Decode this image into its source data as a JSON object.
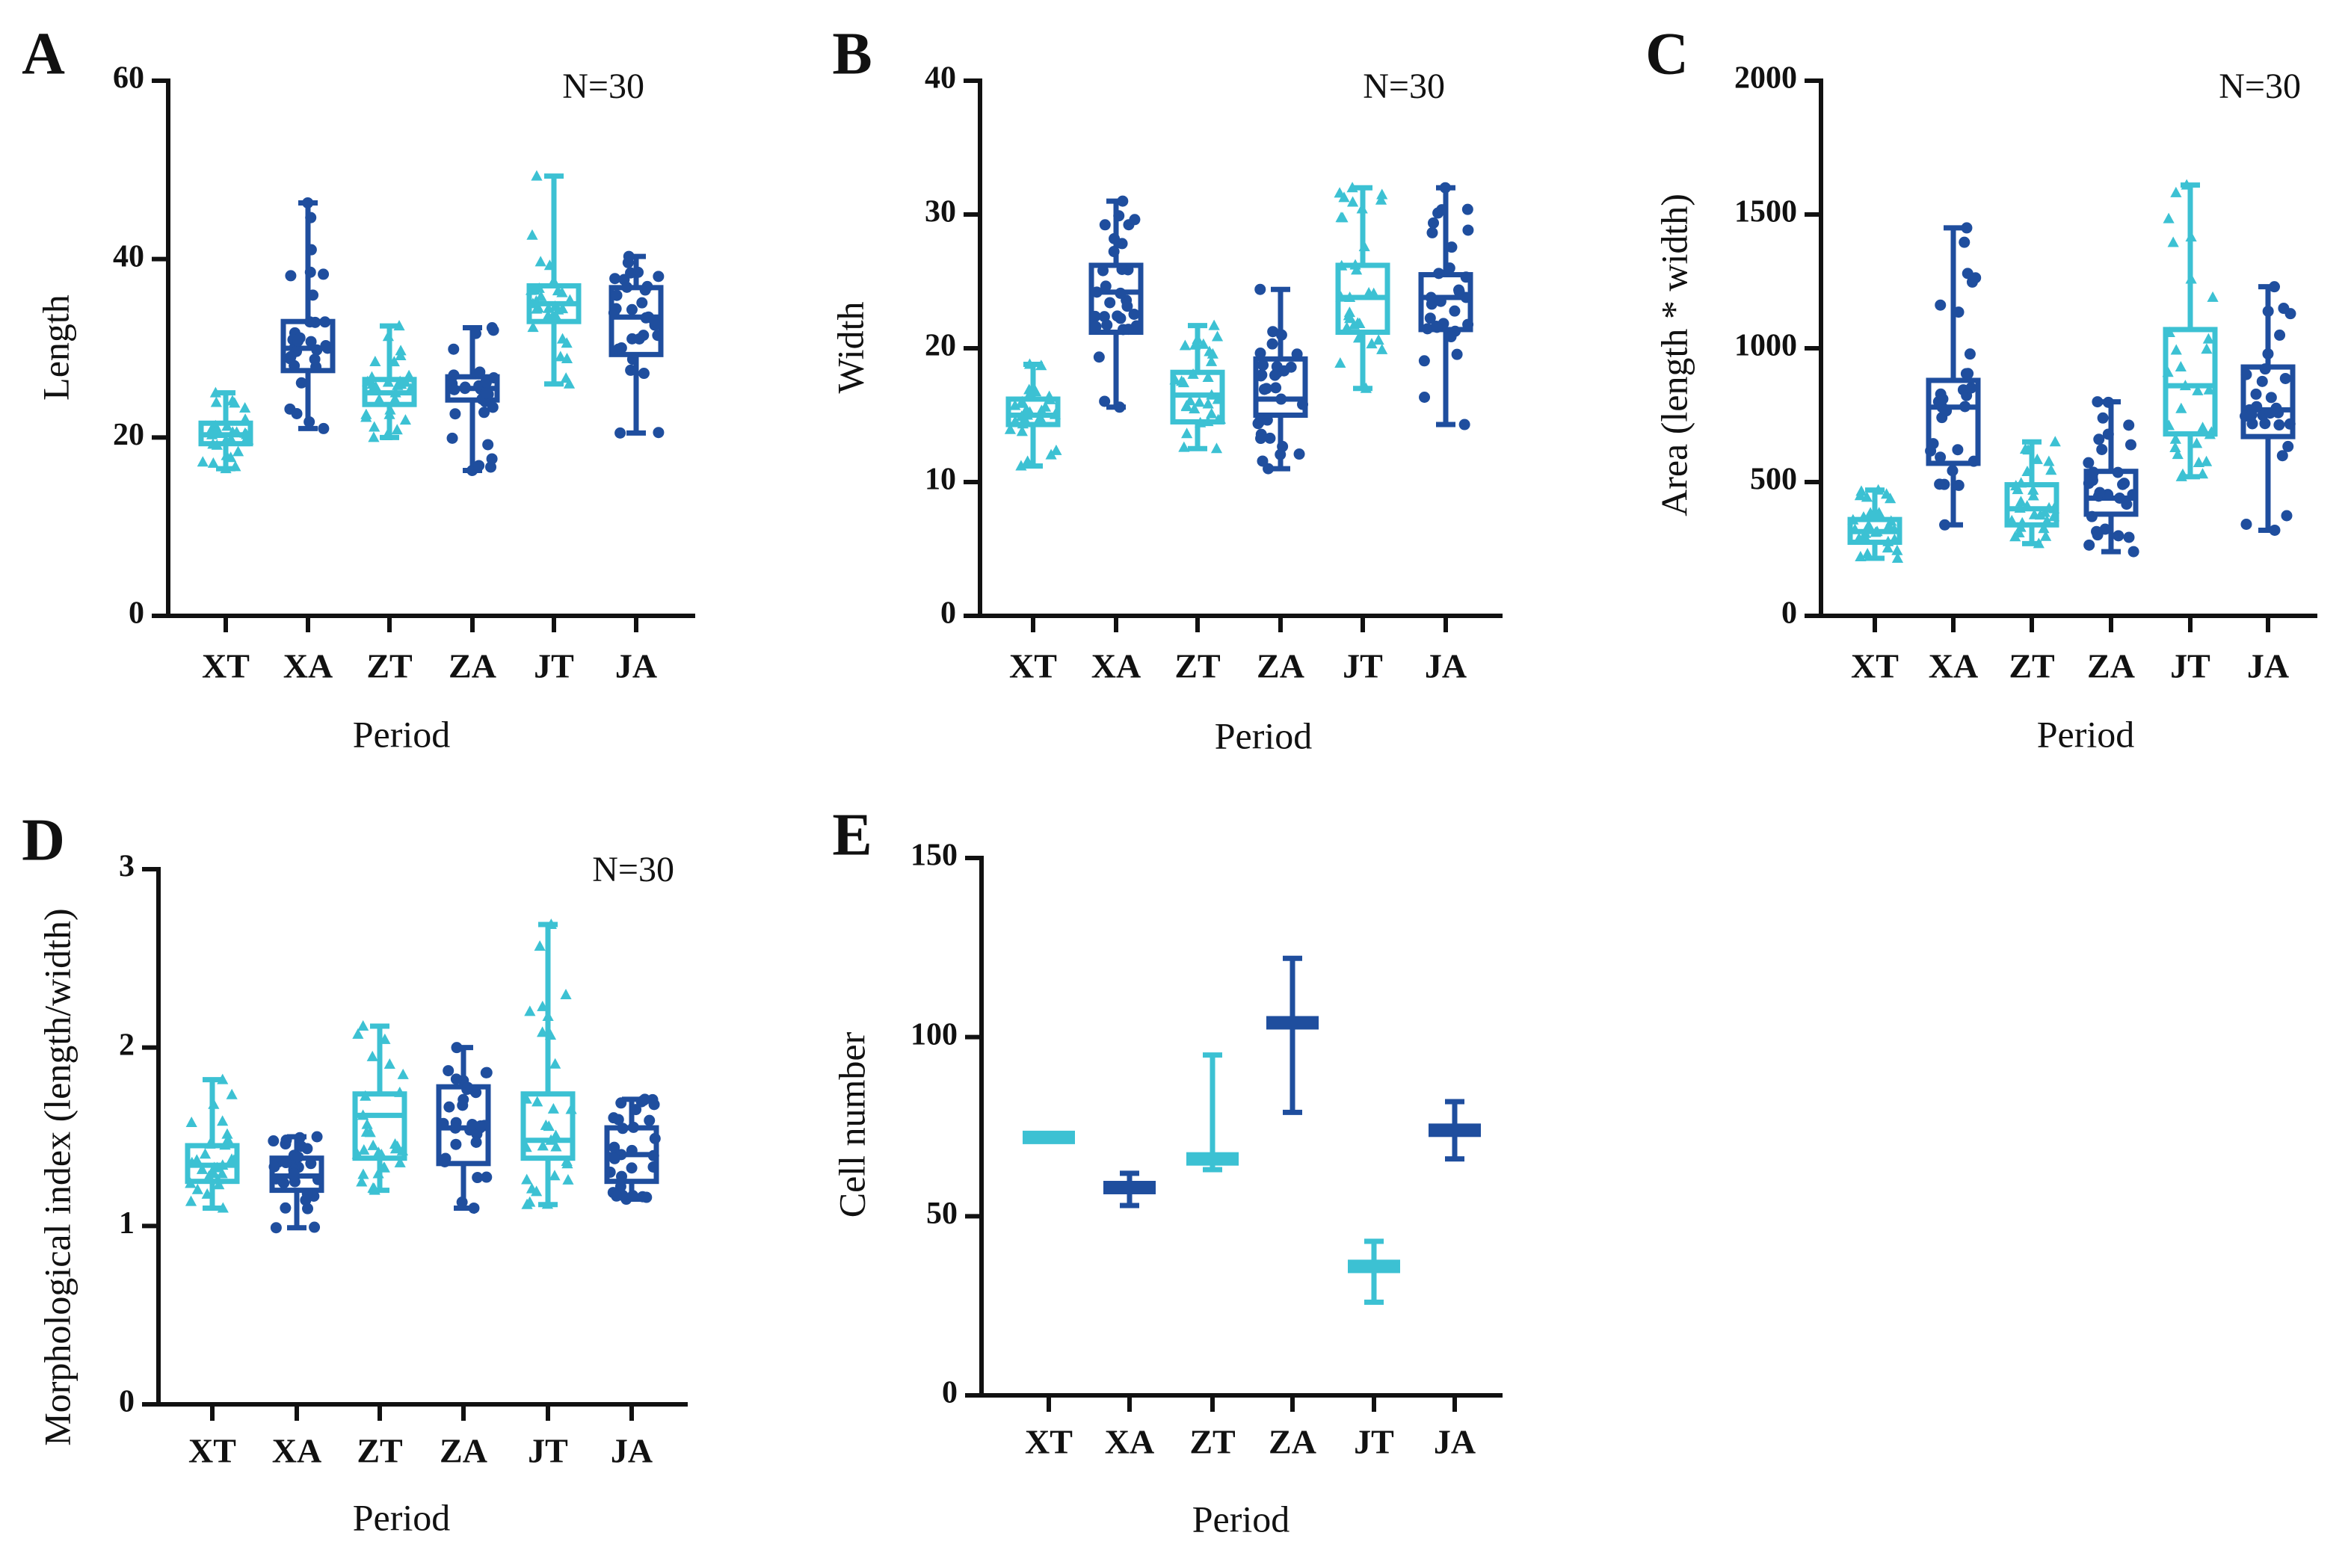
{
  "colors": {
    "light": "#3CC1D3",
    "dark": "#1F4E9E",
    "axis": "#111111"
  },
  "chart_data": [
    {
      "panel": "A",
      "type": "box",
      "annotation": "N=30",
      "xlabel": "Period",
      "ylabel": "Length",
      "ylim": [
        0,
        60
      ],
      "yticks": [
        "0",
        "20",
        "40",
        "60"
      ],
      "categories": [
        "XT",
        "XA",
        "ZT",
        "ZA",
        "JT",
        "JA"
      ],
      "markers": [
        "triangle",
        "circle",
        "triangle",
        "circle",
        "triangle",
        "circle"
      ],
      "series": [
        {
          "name": "XT",
          "min": 16.5,
          "q1": 19.3,
          "median": 20.3,
          "q3": 21.6,
          "max": 25
        },
        {
          "name": "XA",
          "min": 21,
          "q1": 27.5,
          "median": 30,
          "q3": 33,
          "max": 46.3
        },
        {
          "name": "ZT",
          "min": 20,
          "q1": 23.7,
          "median": 25,
          "q3": 26.5,
          "max": 32.5
        },
        {
          "name": "ZA",
          "min": 16.3,
          "q1": 24.2,
          "median": 25.5,
          "q3": 26.8,
          "max": 32.3
        },
        {
          "name": "JT",
          "min": 26,
          "q1": 33,
          "median": 35,
          "q3": 37,
          "max": 49.3
        },
        {
          "name": "JA",
          "min": 20.5,
          "q1": 29.3,
          "median": 33.5,
          "q3": 36.8,
          "max": 40.3
        }
      ]
    },
    {
      "panel": "B",
      "type": "box",
      "annotation": "N=30",
      "xlabel": "Period",
      "ylabel": "Width",
      "ylim": [
        0,
        40
      ],
      "yticks": [
        "0",
        "10",
        "20",
        "30",
        "40"
      ],
      "categories": [
        "XT",
        "XA",
        "ZT",
        "ZA",
        "JT",
        "JA"
      ],
      "markers": [
        "triangle",
        "circle",
        "triangle",
        "circle",
        "triangle",
        "circle"
      ],
      "series": [
        {
          "name": "XT",
          "min": 11.2,
          "q1": 14.3,
          "median": 15,
          "q3": 16.2,
          "max": 18.8
        },
        {
          "name": "XA",
          "min": 15.6,
          "q1": 21.2,
          "median": 24.2,
          "q3": 26.2,
          "max": 31
        },
        {
          "name": "ZT",
          "min": 12.5,
          "q1": 14.5,
          "median": 16.5,
          "q3": 18.2,
          "max": 21.7
        },
        {
          "name": "ZA",
          "min": 11,
          "q1": 15,
          "median": 16.2,
          "q3": 19.2,
          "max": 24.4
        },
        {
          "name": "JT",
          "min": 17,
          "q1": 21.2,
          "median": 23.8,
          "q3": 26.2,
          "max": 32
        },
        {
          "name": "JA",
          "min": 14.3,
          "q1": 21.4,
          "median": 23.8,
          "q3": 25.5,
          "max": 32
        }
      ]
    },
    {
      "panel": "C",
      "type": "box",
      "annotation": "N=30",
      "xlabel": "Period",
      "ylabel": "Area (length * width)",
      "ylim": [
        0,
        2000
      ],
      "yticks": [
        "0",
        "500",
        "1000",
        "1500",
        "2000"
      ],
      "categories": [
        "XT",
        "XA",
        "ZT",
        "ZA",
        "JT",
        "JA"
      ],
      "markers": [
        "triangle",
        "circle",
        "triangle",
        "circle",
        "triangle",
        "circle"
      ],
      "series": [
        {
          "name": "XT",
          "min": 215,
          "q1": 275,
          "median": 315,
          "q3": 360,
          "max": 470
        },
        {
          "name": "XA",
          "min": 340,
          "q1": 570,
          "median": 780,
          "q3": 880,
          "max": 1450
        },
        {
          "name": "ZT",
          "min": 270,
          "q1": 340,
          "median": 400,
          "q3": 490,
          "max": 650
        },
        {
          "name": "ZA",
          "min": 240,
          "q1": 380,
          "median": 440,
          "q3": 540,
          "max": 800
        },
        {
          "name": "JT",
          "min": 520,
          "q1": 680,
          "median": 860,
          "q3": 1070,
          "max": 1610
        },
        {
          "name": "JA",
          "min": 320,
          "q1": 670,
          "median": 770,
          "q3": 930,
          "max": 1230
        }
      ]
    },
    {
      "panel": "D",
      "type": "box",
      "annotation": "N=30",
      "xlabel": "Period",
      "ylabel": "Morphological index (length/width)",
      "ylim": [
        0,
        3
      ],
      "yticks": [
        "0",
        "1",
        "2",
        "3"
      ],
      "categories": [
        "XT",
        "XA",
        "ZT",
        "ZA",
        "JT",
        "JA"
      ],
      "markers": [
        "triangle",
        "circle",
        "triangle",
        "circle",
        "triangle",
        "circle"
      ],
      "series": [
        {
          "name": "XT",
          "min": 1.1,
          "q1": 1.25,
          "median": 1.34,
          "q3": 1.45,
          "max": 1.82
        },
        {
          "name": "XA",
          "min": 0.99,
          "q1": 1.2,
          "median": 1.28,
          "q3": 1.38,
          "max": 1.5
        },
        {
          "name": "ZT",
          "min": 1.2,
          "q1": 1.38,
          "median": 1.62,
          "q3": 1.74,
          "max": 2.12
        },
        {
          "name": "ZA",
          "min": 1.1,
          "q1": 1.35,
          "median": 1.55,
          "q3": 1.78,
          "max": 2
        },
        {
          "name": "JT",
          "min": 1.12,
          "q1": 1.38,
          "median": 1.48,
          "q3": 1.74,
          "max": 2.69
        },
        {
          "name": "JA",
          "min": 1.15,
          "q1": 1.25,
          "median": 1.4,
          "q3": 1.55,
          "max": 1.71
        }
      ]
    },
    {
      "panel": "E",
      "type": "min-max-mean",
      "xlabel": "Period",
      "ylabel": "Cell number",
      "ylim": [
        0,
        150
      ],
      "yticks": [
        "0",
        "50",
        "100",
        "150"
      ],
      "categories": [
        "XT",
        "XA",
        "ZT",
        "ZA",
        "JT",
        "JA"
      ],
      "series": [
        {
          "name": "XT",
          "min": 72,
          "mean": 72,
          "max": 72
        },
        {
          "name": "XA",
          "min": 53,
          "mean": 58,
          "max": 62
        },
        {
          "name": "ZT",
          "min": 63,
          "mean": 66,
          "max": 95
        },
        {
          "name": "ZA",
          "min": 79,
          "mean": 104,
          "max": 122
        },
        {
          "name": "JT",
          "min": 26,
          "mean": 36,
          "max": 43
        },
        {
          "name": "JA",
          "min": 66,
          "mean": 74,
          "max": 82
        }
      ]
    }
  ]
}
